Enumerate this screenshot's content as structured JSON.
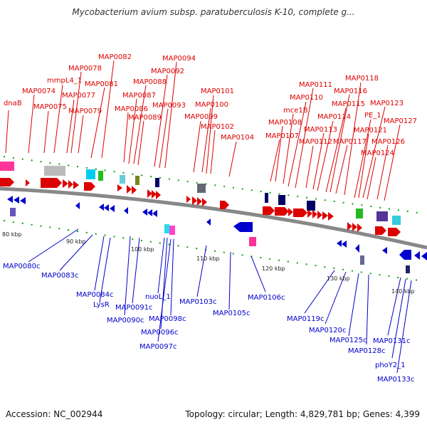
{
  "title": "Mycobacterium avium subsp. paratuberculosis K-10, complete g...",
  "footer": {
    "accession": "Accession: NC_002944",
    "topology": "Topology: circular; Length: 4,829,781 bp; Genes: 4,399"
  },
  "colors": {
    "forward": "#dd0000",
    "reverse": "#0000cc",
    "backbone": "#888888",
    "tick": "#00aa00"
  },
  "scale_labels": [
    "80 kbp",
    "90 kbp",
    "100 kbp",
    "110 kbp",
    "120 kbp",
    "130 kbp",
    "140 kbp"
  ],
  "forward_genes": [
    "dnaB",
    "MAP0074",
    "MAP0075",
    "mmpL4_1",
    "MAP0077",
    "MAP0078",
    "MAP0079",
    "MAP0081",
    "MAP0082",
    "MAP0086",
    "MAP0087",
    "MAP0088",
    "MAP0089",
    "MAP0092",
    "MAP0093",
    "MAP0094",
    "MAP0099",
    "MAP0100",
    "MAP0101",
    "MAP0102",
    "MAP0104",
    "MAP0107",
    "MAP0108",
    "mce1B",
    "MAP0110",
    "MAP0111",
    "MAP0112",
    "MAP0113",
    "MAP0114",
    "MAP0115",
    "MAP0116",
    "MAP0117",
    "MAP0118",
    "PE_1",
    "MAP0121",
    "MAP0123",
    "MAP0124",
    "MAP0126",
    "MAP0127"
  ],
  "reverse_genes": [
    "MAP0080c",
    "MAP0083c",
    "MAP0084c",
    "LysR",
    "MAP0090c",
    "MAP0091c",
    "nuoL_1",
    "MAP0096c",
    "MAP0097c",
    "MAP0098c",
    "MAP0103c",
    "MAP0105c",
    "MAP0106c",
    "MAP0119c",
    "MAP0120c",
    "MAP0125c",
    "MAP0128c",
    "MAP0131c",
    "phoY2_1",
    "MAP0133c"
  ]
}
